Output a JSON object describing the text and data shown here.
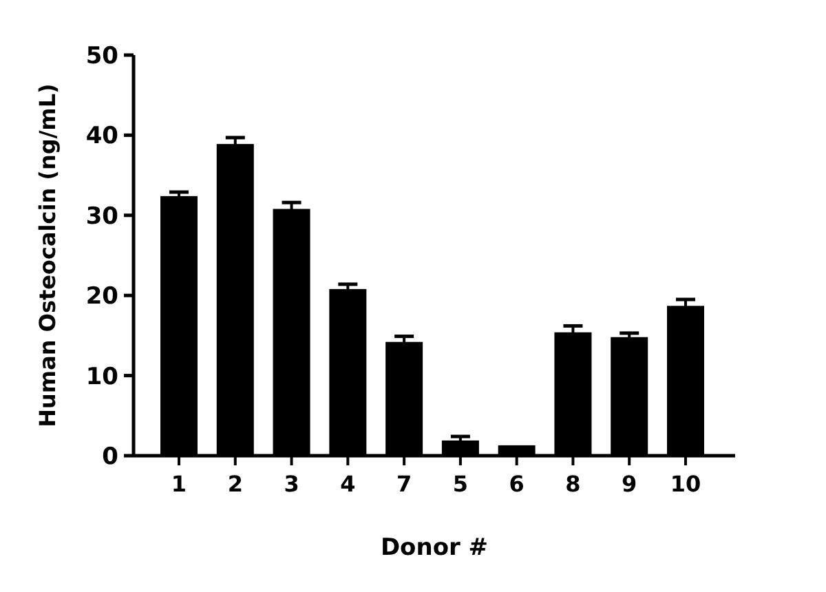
{
  "chart_data": {
    "type": "bar",
    "xlabel": "Donor #",
    "ylabel": "Human Osteocalcin (ng/mL)",
    "categories": [
      "1",
      "2",
      "3",
      "4",
      "7",
      "5",
      "6",
      "8",
      "9",
      "10"
    ],
    "values": [
      32.4,
      38.9,
      30.8,
      20.8,
      14.2,
      1.9,
      1.3,
      15.4,
      14.8,
      18.7
    ],
    "errors": [
      0.5,
      0.8,
      0.8,
      0.6,
      0.7,
      0.5,
      null,
      0.8,
      0.5,
      0.8
    ],
    "color": "#000000",
    "ylim": [
      0,
      50
    ],
    "yticks": [
      0,
      10,
      20,
      30,
      40,
      50
    ],
    "grid": false
  }
}
